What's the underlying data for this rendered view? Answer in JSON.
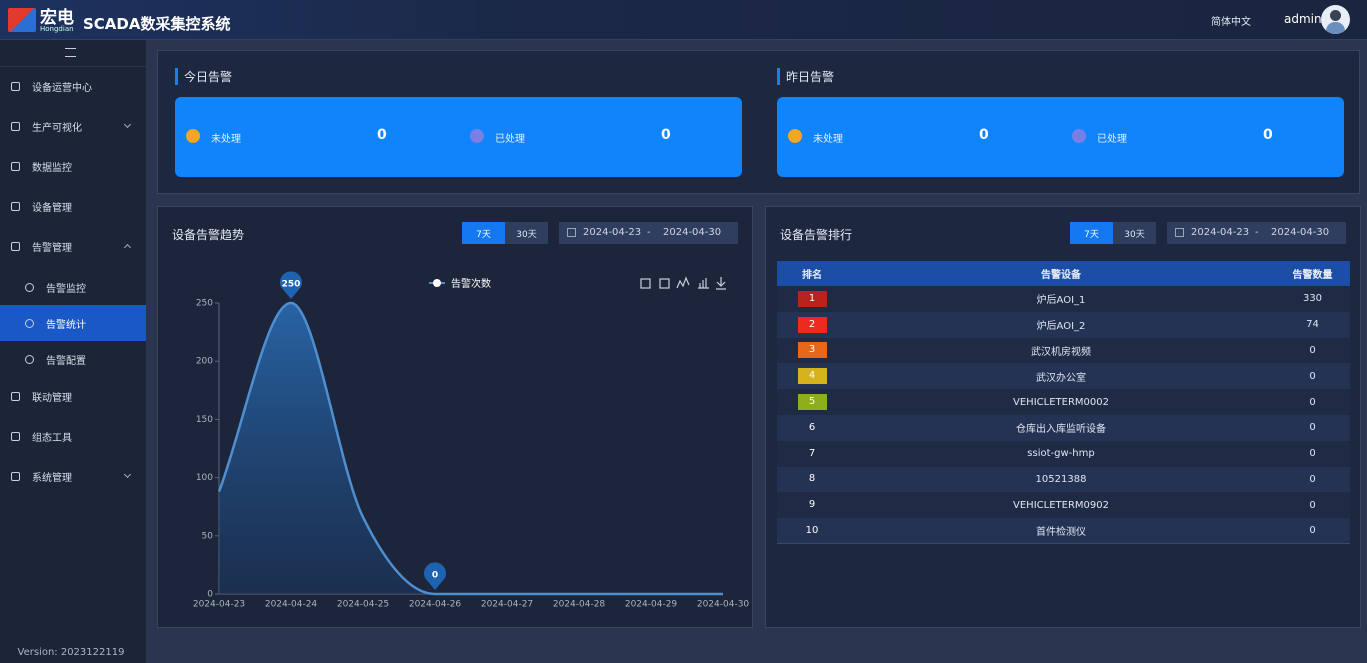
{
  "header": {
    "logo": "宏电",
    "logo_sub": "Hongdian",
    "title": "SCADA数采集控系统",
    "language": "简体中文",
    "user": "admin"
  },
  "sidebar": {
    "items": [
      {
        "label": "设备运营中心"
      },
      {
        "label": "生产可视化"
      },
      {
        "label": "数据监控"
      },
      {
        "label": "设备管理"
      },
      {
        "label": "告警管理",
        "children": [
          "告警监控",
          "告警统计",
          "告警配置"
        ]
      },
      {
        "label": "联动管理"
      },
      {
        "label": "组态工具"
      },
      {
        "label": "系统管理"
      }
    ],
    "version": "Version: 2023122119"
  },
  "today": {
    "title": "今日告警",
    "unhandled_label": "未处理",
    "unhandled": 0,
    "handled_label": "已处理",
    "handled": 0
  },
  "yesterday": {
    "title": "昨日告警",
    "unhandled_label": "未处理",
    "unhandled": 0,
    "handled_label": "已处理",
    "handled": 0
  },
  "trend_controls": {
    "tabs": [
      "7天",
      "30天"
    ],
    "date_start": "2024-04-23",
    "date_sep": "-",
    "date_end": "2024-04-30"
  },
  "chart_data": {
    "type": "line",
    "title": "设备告警趋势",
    "categories": [
      "2024-04-23",
      "2024-04-24",
      "2024-04-25",
      "2024-04-26",
      "2024-04-27",
      "2024-04-28",
      "2024-04-29",
      "2024-04-30"
    ],
    "series": [
      {
        "name": "告警次数",
        "color": "#4f8fd0",
        "values": [
          88,
          250,
          66,
          0,
          0,
          0,
          0,
          0
        ]
      }
    ],
    "ylim": [
      0,
      250
    ],
    "yticks": [
      0,
      50,
      100,
      150,
      200,
      250
    ]
  },
  "ranking": {
    "title": "设备告警排行",
    "tabs": [
      "7天",
      "30天"
    ],
    "date_start": "2024-04-23",
    "date_sep": "-",
    "date_end": "2024-04-30",
    "columns": [
      "排名",
      "告警设备",
      "告警数量"
    ],
    "rows": [
      [
        1,
        "炉后AOI_1",
        330
      ],
      [
        2,
        "炉后AOI_2",
        74
      ],
      [
        3,
        "武汉机房视频",
        0
      ],
      [
        4,
        "武汉办公室",
        0
      ],
      [
        5,
        "VEHICLETERM0002",
        0
      ],
      [
        6,
        "仓库出入库监听设备",
        0
      ],
      [
        7,
        "ssiot-gw-hmp",
        0
      ],
      [
        8,
        "10521388",
        0
      ],
      [
        9,
        "VEHICLETERM0902",
        0
      ],
      [
        10,
        "首件检测仪",
        0
      ]
    ]
  }
}
